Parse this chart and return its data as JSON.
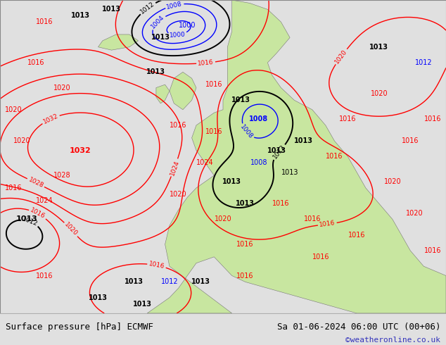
{
  "title_left": "Surface pressure [hPa] ECMWF",
  "title_right": "Sa 01-06-2024 06:00 UTC (00+06)",
  "watermark": "©weatheronline.co.uk",
  "ocean_color": "#b8d8e8",
  "land_color": "#c8e6a0",
  "border_color": "#888888",
  "footer_bg": "#e0e0e0",
  "footer_text_color": "#000000",
  "watermark_color": "#3333bb",
  "fig_width": 6.34,
  "fig_height": 4.9,
  "dpi": 100
}
